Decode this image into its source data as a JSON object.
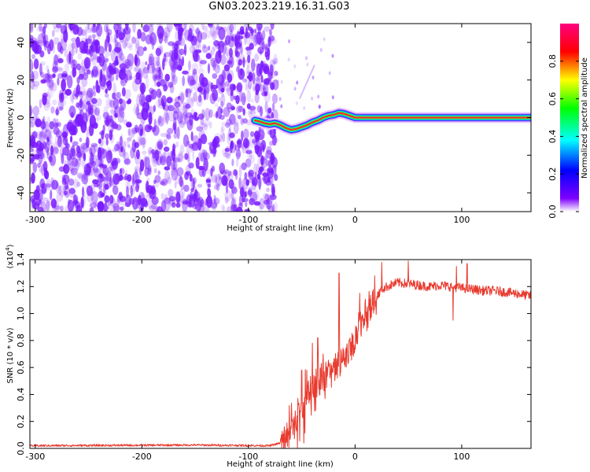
{
  "title": "GN03.2023.219.16.31.G03",
  "chart_data": [
    {
      "type": "heatmap",
      "xlabel": "Height of straight line (km)",
      "ylabel": "Frequency (Hz)",
      "xlim": [
        -305,
        165
      ],
      "ylim": [
        -50,
        50
      ],
      "x_ticks": [
        -300,
        -200,
        -100,
        0,
        100
      ],
      "y_ticks": [
        -40,
        -20,
        0,
        20,
        40
      ],
      "noise_region_x": [
        -305,
        -80
      ],
      "signal_line": {
        "x": [
          -94,
          -90,
          -85,
          -80,
          -75,
          -70,
          -65,
          -60,
          -55,
          -50,
          -45,
          -40,
          -35,
          -30,
          -25,
          -20,
          -15,
          -10,
          -5,
          0,
          20,
          40,
          60,
          80,
          100,
          120,
          140,
          165
        ],
        "freq": [
          -1.5,
          -2,
          -3,
          -3.5,
          -3,
          -4,
          -5.5,
          -6.5,
          -6,
          -5,
          -4,
          -2.5,
          -1.5,
          0,
          1,
          1.5,
          2.5,
          2,
          1,
          0,
          0,
          0,
          0,
          0,
          0,
          0,
          0,
          0
        ]
      },
      "colorbar": {
        "label": "Normalized spectral amplitude",
        "range": [
          0.0,
          1.0
        ],
        "ticks": [
          "0.0",
          "0.2",
          "0.4",
          "0.6",
          "0.8"
        ],
        "tick_values": [
          0.0,
          0.2,
          0.4,
          0.6,
          0.8
        ],
        "colors": [
          "#ffffff",
          "#7f00ff",
          "#0000ff",
          "#00ffff",
          "#00ff00",
          "#ffff00",
          "#ff0000",
          "#ff0080"
        ]
      },
      "noise_color": "#7a1aff"
    },
    {
      "type": "line",
      "xlabel": "Height of straight line (km)",
      "ylabel": "SNR (10 * v/v)",
      "scale_label": "(x10",
      "scale_exp": "4",
      "scale_close": ")",
      "xlim": [
        -305,
        165
      ],
      "ylim": [
        0,
        1.4
      ],
      "x_ticks": [
        -300,
        -200,
        -100,
        0,
        100
      ],
      "y_ticks": [
        "0.0",
        "0.2",
        "0.4",
        "0.6",
        "0.8",
        "1.0",
        "1.2",
        "1.4"
      ],
      "y_tick_values": [
        0.0,
        0.2,
        0.4,
        0.6,
        0.8,
        1.0,
        1.2,
        1.4
      ],
      "color": "#e83a2e",
      "envelope": {
        "x": [
          -305,
          -150,
          -80,
          -70,
          -60,
          -55,
          -50,
          -45,
          -40,
          -35,
          -30,
          -25,
          -20,
          -15,
          -10,
          -5,
          0,
          5,
          10,
          15,
          20,
          25,
          30,
          40,
          50,
          60,
          70,
          80,
          90,
          100,
          110,
          120,
          130,
          140,
          150,
          165
        ],
        "y": [
          0.02,
          0.025,
          0.02,
          0.04,
          0.12,
          0.22,
          0.3,
          0.38,
          0.42,
          0.48,
          0.52,
          0.55,
          0.58,
          0.62,
          0.66,
          0.72,
          0.82,
          0.92,
          1.0,
          1.06,
          1.12,
          1.18,
          1.2,
          1.23,
          1.22,
          1.21,
          1.2,
          1.21,
          1.2,
          1.19,
          1.18,
          1.17,
          1.17,
          1.16,
          1.15,
          1.13
        ]
      },
      "spikes": [
        {
          "x": -35,
          "y": 0.82
        },
        {
          "x": -40,
          "y": 0.78
        },
        {
          "x": -50,
          "y": 0.58
        },
        {
          "x": -15,
          "y": 1.3
        },
        {
          "x": -48,
          "y": 0.04
        },
        {
          "x": 25,
          "y": 1.38
        },
        {
          "x": 50,
          "y": 1.39
        },
        {
          "x": 95,
          "y": 1.35
        },
        {
          "x": 105,
          "y": 1.37
        },
        {
          "x": 92,
          "y": 0.95
        }
      ]
    }
  ]
}
